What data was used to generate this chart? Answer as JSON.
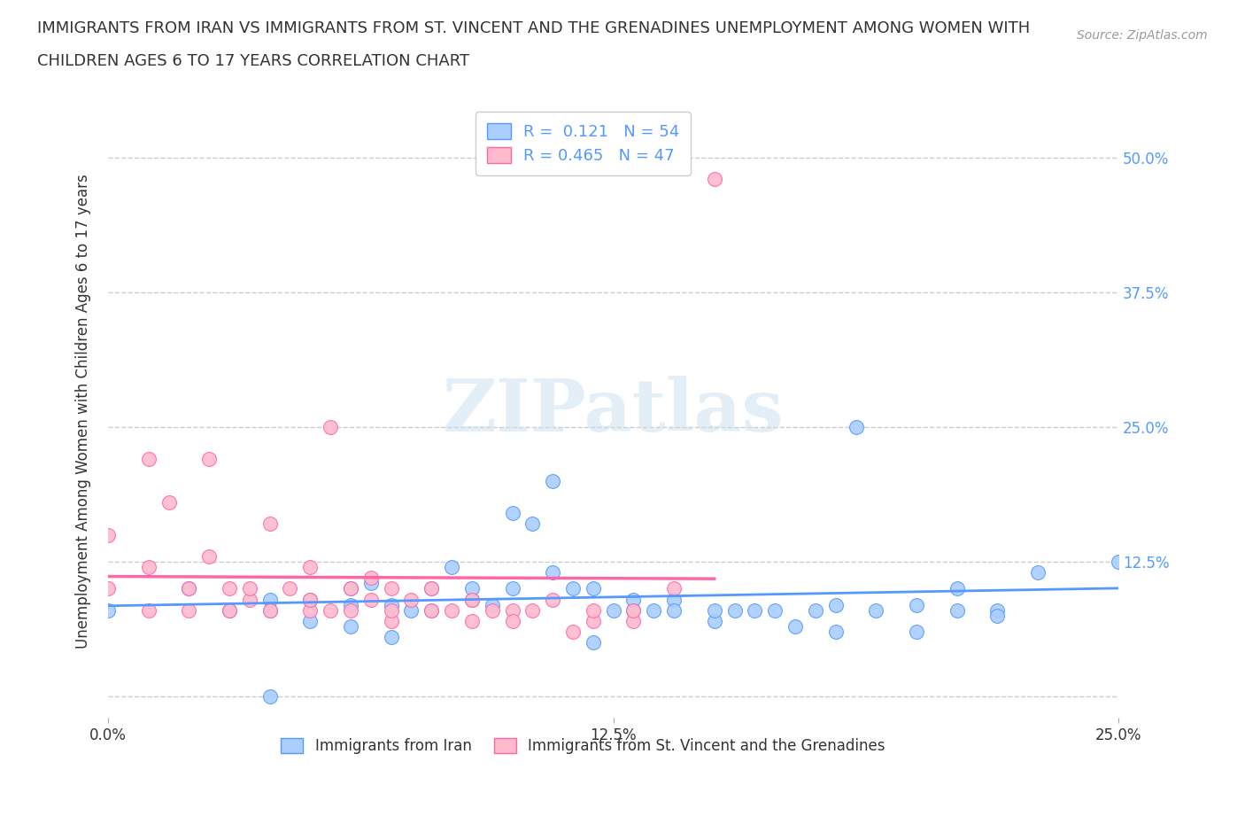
{
  "title_line1": "IMMIGRANTS FROM IRAN VS IMMIGRANTS FROM ST. VINCENT AND THE GRENADINES UNEMPLOYMENT AMONG WOMEN WITH",
  "title_line2": "CHILDREN AGES 6 TO 17 YEARS CORRELATION CHART",
  "source": "Source: ZipAtlas.com",
  "ylabel": "Unemployment Among Women with Children Ages 6 to 17 years",
  "xlim": [
    0.0,
    0.25
  ],
  "ylim": [
    -0.02,
    0.55
  ],
  "xticks": [
    0.0,
    0.125,
    0.25
  ],
  "xticklabels": [
    "0.0%",
    "12.5%",
    "25.0%"
  ],
  "ytick_positions": [
    0.0,
    0.125,
    0.25,
    0.375,
    0.5
  ],
  "yticklabels_right": [
    "",
    "12.5%",
    "25.0%",
    "37.5%",
    "50.0%"
  ],
  "grid_color": "#cccccc",
  "background_color": "#ffffff",
  "watermark": "ZIPatlas",
  "legend_R1": "0.121",
  "legend_N1": "54",
  "legend_R2": "0.465",
  "legend_N2": "47",
  "color_iran": "#aacfff",
  "color_stvincent": "#ffbbcc",
  "line_color_iran": "#5599ff",
  "line_color_stvincent": "#ff66aa",
  "iran_x": [
    0.0,
    0.02,
    0.03,
    0.04,
    0.04,
    0.05,
    0.05,
    0.06,
    0.06,
    0.06,
    0.065,
    0.07,
    0.07,
    0.075,
    0.08,
    0.08,
    0.085,
    0.09,
    0.09,
    0.095,
    0.1,
    0.1,
    0.105,
    0.11,
    0.11,
    0.115,
    0.12,
    0.12,
    0.125,
    0.13,
    0.13,
    0.135,
    0.14,
    0.14,
    0.15,
    0.15,
    0.16,
    0.165,
    0.17,
    0.175,
    0.18,
    0.18,
    0.19,
    0.2,
    0.2,
    0.21,
    0.22,
    0.23,
    0.185,
    0.155,
    0.04,
    0.25,
    0.22,
    0.21
  ],
  "iran_y": [
    0.08,
    0.1,
    0.08,
    0.08,
    0.09,
    0.07,
    0.09,
    0.065,
    0.1,
    0.085,
    0.105,
    0.055,
    0.085,
    0.08,
    0.1,
    0.08,
    0.12,
    0.09,
    0.1,
    0.085,
    0.17,
    0.1,
    0.16,
    0.2,
    0.115,
    0.1,
    0.05,
    0.1,
    0.08,
    0.09,
    0.08,
    0.08,
    0.09,
    0.08,
    0.07,
    0.08,
    0.08,
    0.08,
    0.065,
    0.08,
    0.06,
    0.085,
    0.08,
    0.06,
    0.085,
    0.1,
    0.08,
    0.115,
    0.25,
    0.08,
    0.0,
    0.125,
    0.075,
    0.08
  ],
  "stvincent_x": [
    0.0,
    0.0,
    0.01,
    0.01,
    0.01,
    0.015,
    0.02,
    0.02,
    0.025,
    0.025,
    0.03,
    0.03,
    0.035,
    0.035,
    0.04,
    0.04,
    0.045,
    0.05,
    0.05,
    0.05,
    0.055,
    0.055,
    0.06,
    0.06,
    0.065,
    0.065,
    0.07,
    0.07,
    0.07,
    0.075,
    0.08,
    0.08,
    0.085,
    0.09,
    0.09,
    0.095,
    0.1,
    0.1,
    0.105,
    0.11,
    0.115,
    0.12,
    0.12,
    0.13,
    0.13,
    0.14,
    0.15
  ],
  "stvincent_y": [
    0.1,
    0.15,
    0.08,
    0.12,
    0.22,
    0.18,
    0.08,
    0.1,
    0.13,
    0.22,
    0.08,
    0.1,
    0.09,
    0.1,
    0.08,
    0.16,
    0.1,
    0.08,
    0.09,
    0.12,
    0.08,
    0.25,
    0.08,
    0.1,
    0.09,
    0.11,
    0.07,
    0.08,
    0.1,
    0.09,
    0.08,
    0.1,
    0.08,
    0.07,
    0.09,
    0.08,
    0.08,
    0.07,
    0.08,
    0.09,
    0.06,
    0.07,
    0.08,
    0.07,
    0.08,
    0.1,
    0.48
  ]
}
